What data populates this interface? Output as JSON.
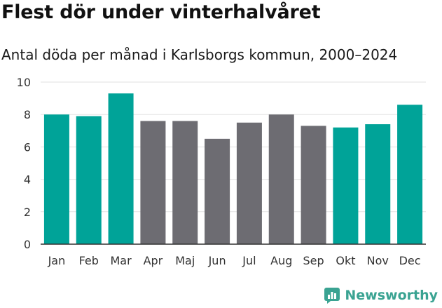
{
  "header": {
    "title": "Flest dör under vinterhalvåret",
    "subtitle": "Antal döda per månad i Karlsborgs kommun, 2000–2024"
  },
  "branding": {
    "name": "Newsworthy"
  },
  "colors": {
    "highlight": "#00a398",
    "base": "#6d6c72",
    "grid": "#e2e2e2",
    "axis": "#333333",
    "brand": "#3aa392"
  },
  "chart_data": {
    "type": "bar",
    "title": "Flest dör under vinterhalvåret",
    "subtitle": "Antal döda per månad i Karlsborgs kommun, 2000–2024",
    "xlabel": "",
    "ylabel": "",
    "ylim": [
      0,
      10
    ],
    "yticks": [
      0,
      2,
      4,
      6,
      8,
      10
    ],
    "grid": true,
    "categories": [
      "Jan",
      "Feb",
      "Mar",
      "Apr",
      "Maj",
      "Jun",
      "Jul",
      "Aug",
      "Sep",
      "Okt",
      "Nov",
      "Dec"
    ],
    "values": [
      8.0,
      7.9,
      9.3,
      7.6,
      7.6,
      6.5,
      7.5,
      8.0,
      7.3,
      7.2,
      7.4,
      8.6
    ],
    "highlighted": [
      true,
      true,
      true,
      false,
      false,
      false,
      false,
      false,
      false,
      true,
      true,
      true
    ]
  }
}
